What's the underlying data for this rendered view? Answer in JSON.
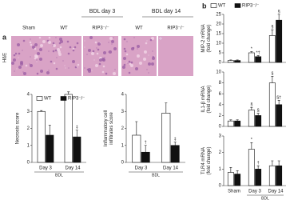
{
  "figure": {
    "panel_a_label": "a",
    "panel_b_label": "b",
    "groups": [
      "BDL day 3",
      "BDL day 14"
    ],
    "columns": [
      "Sham",
      "WT",
      "RIP3⁻/⁻",
      "WT",
      "RIP3⁻/⁻"
    ],
    "row_label": "H&E"
  },
  "chart_data": [
    {
      "type": "bar",
      "y_label": [
        "Necrosis score"
      ],
      "categories": [
        "Day 3",
        "Day 14"
      ],
      "group_label": "BDL",
      "ylim": [
        0,
        4
      ],
      "yticks": [
        0,
        1,
        2,
        3,
        4
      ],
      "series": [
        {
          "name": "WT",
          "color": "#ffffff",
          "values": [
            3,
            4
          ],
          "errors": [
            0.05,
            0.15
          ],
          "markers": [
            null,
            null
          ]
        },
        {
          "name": "RIP3⁻/⁻",
          "color": "#111111",
          "values": [
            1.6,
            1.5
          ],
          "errors": [
            0.6,
            0.4
          ],
          "markers": [
            null,
            "‡"
          ]
        }
      ]
    },
    {
      "type": "bar",
      "y_label": [
        "Inflammatory cell",
        "infiltrates score"
      ],
      "categories": [
        "Day 3",
        "Day 14"
      ],
      "group_label": "BDL",
      "ylim": [
        0,
        4
      ],
      "yticks": [
        0,
        1,
        2,
        3,
        4
      ],
      "series": [
        {
          "color": "#ffffff",
          "values": [
            1.6,
            2.9
          ],
          "errors": [
            0.8,
            0.6
          ],
          "markers": [
            null,
            null
          ]
        },
        {
          "color": "#111111",
          "values": [
            0.6,
            1
          ],
          "errors": [
            0.4,
            0.2
          ],
          "markers": [
            "†",
            "‡"
          ]
        }
      ]
    },
    {
      "type": "bar",
      "y_label": [
        "MIP-2 mRNA",
        "(fold change)"
      ],
      "categories": [
        null,
        null,
        null
      ],
      "ylim": [
        0,
        25
      ],
      "yticks": [
        0,
        5,
        10,
        15,
        20,
        25
      ],
      "series": [
        {
          "name": "WT",
          "color": "#ffffff",
          "values": [
            1,
            5,
            14
          ],
          "errors": [
            0.3,
            0.6,
            3
          ],
          "markers": [
            null,
            "*",
            "§"
          ]
        },
        {
          "name": "RIP3⁻/⁻",
          "color": "#111111",
          "values": [
            1,
            3,
            22
          ],
          "errors": [
            0.3,
            0.5,
            3
          ],
          "markers": [
            null,
            "*†",
            "§"
          ]
        }
      ]
    },
    {
      "type": "bar",
      "y_label": [
        "IL1-β mRNA",
        "(fold change)"
      ],
      "categories": [
        null,
        null,
        null
      ],
      "ylim": [
        0,
        10
      ],
      "yticks": [
        0,
        2,
        4,
        6,
        8,
        10
      ],
      "series": [
        {
          "color": "#ffffff",
          "values": [
            1,
            3,
            8
          ],
          "errors": [
            0.2,
            0.5,
            1.2
          ],
          "markers": [
            null,
            "§",
            "§"
          ]
        },
        {
          "color": "#111111",
          "values": [
            1,
            2,
            4
          ],
          "errors": [
            0.2,
            0.4,
            0.8
          ],
          "markers": [
            null,
            "§",
            "§†"
          ]
        }
      ]
    },
    {
      "type": "bar",
      "y_label": [
        "TLR4 mRNA",
        "(fold change)"
      ],
      "categories": [
        "Sham",
        "Day 3",
        "Day 14"
      ],
      "group_label": "BDL",
      "ylim": [
        0,
        3
      ],
      "yticks": [
        0,
        1,
        2,
        3
      ],
      "series": [
        {
          "color": "#ffffff",
          "values": [
            0.8,
            2.2,
            1.2
          ],
          "errors": [
            0.3,
            0.4,
            0.3
          ],
          "markers": [
            null,
            "*",
            null
          ]
        },
        {
          "color": "#111111",
          "values": [
            0.7,
            1,
            1.2
          ],
          "errors": [
            0.2,
            0.2,
            0.3
          ],
          "markers": [
            null,
            "†",
            null
          ]
        }
      ]
    }
  ]
}
